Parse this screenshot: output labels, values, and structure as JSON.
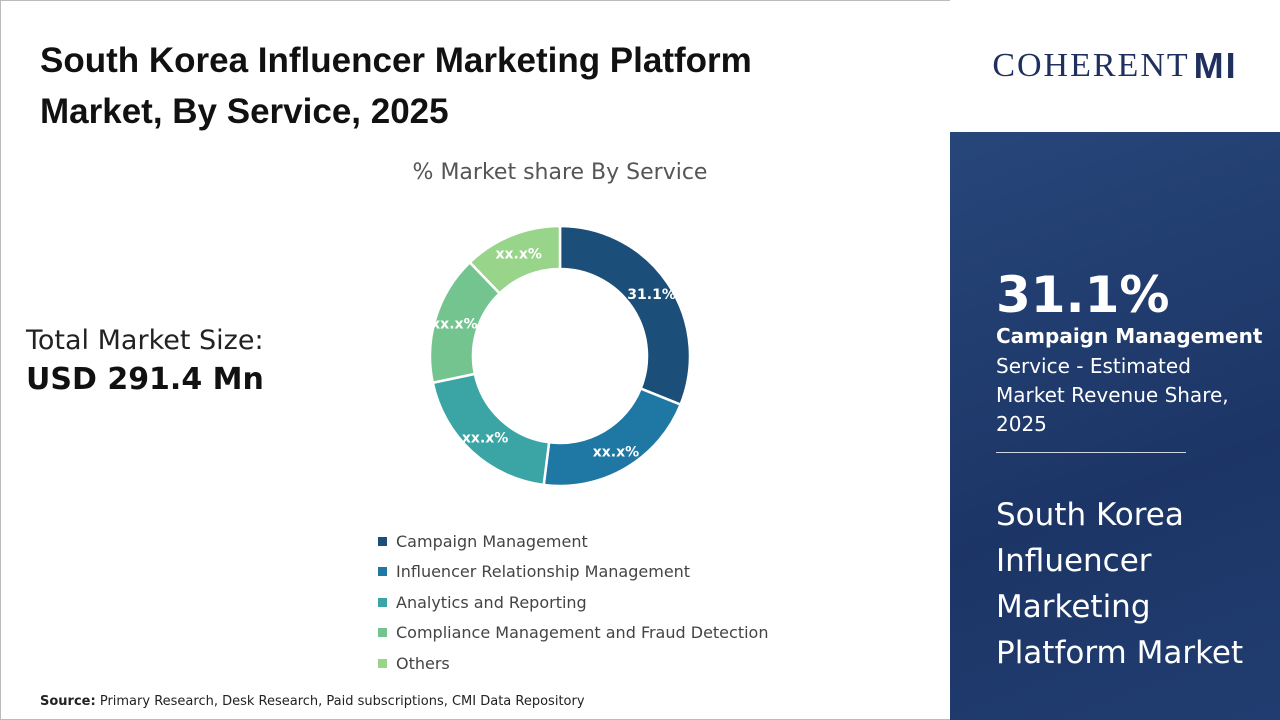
{
  "title": "South Korea Influencer Marketing Platform Market, By Service, 2025",
  "total_market": {
    "label": "Total Market Size:",
    "value": "USD 291.4 Mn"
  },
  "source": {
    "label": "Source:",
    "text": "Primary Research, Desk Research, Paid subscriptions, CMI Data Repository"
  },
  "logo": {
    "text": "COHERENT",
    "suffix": "MI"
  },
  "highlight": {
    "value": "31.1%",
    "segment": "Campaign Management",
    "description": "Service - Estimated Market Revenue Share, 2025",
    "market_name": "South Korea Influencer Marketing Platform Market"
  },
  "chart_data": {
    "type": "pie",
    "donut": true,
    "title": "% Market share By Service",
    "categories": [
      "Campaign Management",
      "Influencer Relationship Management",
      "Analytics and Reporting",
      "Compliance Management and Fraud Detection",
      "Others"
    ],
    "values": [
      31.1,
      20.9,
      19.7,
      16.1,
      12.2
    ],
    "data_labels": [
      "31.1%",
      "xx.x%",
      "xx.x%",
      "xx.x%",
      "xx.x%"
    ],
    "colors": [
      "#1b4f7a",
      "#1f77a4",
      "#3aa5a4",
      "#74c48f",
      "#98d48a"
    ],
    "legend_placement": "bottom"
  }
}
